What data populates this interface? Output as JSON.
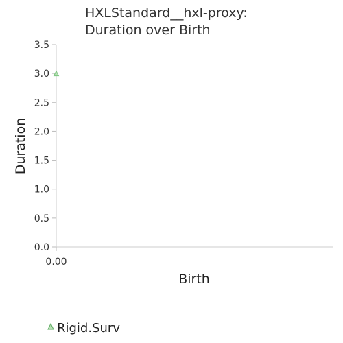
{
  "chart_data": {
    "type": "scatter",
    "title_lines": [
      "HXLStandard__hxl-proxy:",
      "Duration over Birth"
    ],
    "xlabel": "Birth",
    "ylabel": "Duration",
    "xlim": [
      0,
      1
    ],
    "ylim": [
      0,
      3.5
    ],
    "x_ticks": [
      "0.00"
    ],
    "y_ticks": [
      "0.0",
      "0.5",
      "1.0",
      "1.5",
      "2.0",
      "2.5",
      "3.0",
      "3.5"
    ],
    "y_tick_values": [
      0,
      0.5,
      1.0,
      1.5,
      2.0,
      2.5,
      3.0,
      3.5
    ],
    "grid": false,
    "legend_position": "bottom-left",
    "series": [
      {
        "name": "Rigid.Surv",
        "marker": "triangle",
        "color": "#7bc47f",
        "points": [
          {
            "x": 0,
            "y": 3.0
          }
        ]
      }
    ]
  }
}
